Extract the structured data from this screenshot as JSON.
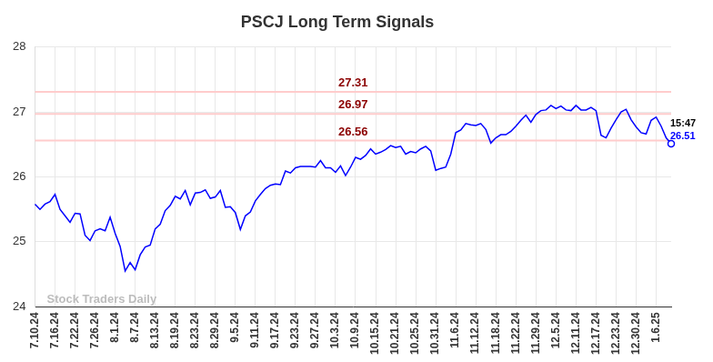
{
  "chart_data": {
    "type": "line",
    "title": "PSCJ Long Term Signals",
    "categories": [
      "7.10.24",
      null,
      null,
      null,
      "7.16.24",
      null,
      null,
      null,
      "7.22.24",
      null,
      null,
      null,
      "7.26.24",
      null,
      null,
      null,
      "8.1.24",
      null,
      null,
      null,
      "8.7.24",
      null,
      null,
      null,
      "8.13.24",
      null,
      null,
      null,
      "8.19.24",
      null,
      null,
      null,
      "8.23.24",
      null,
      null,
      null,
      "8.29.24",
      null,
      null,
      null,
      "9.5.24",
      null,
      null,
      null,
      "9.11.24",
      null,
      null,
      null,
      "9.17.24",
      null,
      null,
      null,
      "9.23.24",
      null,
      null,
      null,
      "9.27.24",
      null,
      null,
      null,
      "10.3.24",
      null,
      null,
      null,
      "10.9.24",
      null,
      null,
      null,
      "10.15.24",
      null,
      null,
      null,
      "10.21.24",
      null,
      null,
      null,
      "10.25.24",
      null,
      null,
      null,
      "10.31.24",
      null,
      null,
      null,
      "11.6.24",
      null,
      null,
      null,
      "11.12.24",
      null,
      null,
      null,
      "11.18.24",
      null,
      null,
      null,
      "11.22.24",
      null,
      null,
      null,
      "11.29.24",
      null,
      null,
      null,
      "12.5.24",
      null,
      null,
      null,
      "12.11.24",
      null,
      null,
      null,
      "12.17.24",
      null,
      null,
      null,
      "12.23.24",
      null,
      null,
      null,
      "12.30.24",
      null,
      null,
      null,
      "1.6.25",
      null,
      null,
      null
    ],
    "values": [
      25.58,
      25.5,
      25.58,
      25.62,
      25.73,
      25.5,
      25.4,
      25.3,
      25.44,
      25.43,
      25.1,
      25.02,
      25.17,
      25.2,
      25.17,
      25.38,
      25.13,
      24.93,
      24.55,
      24.68,
      24.57,
      24.8,
      24.92,
      24.95,
      25.2,
      25.27,
      25.48,
      25.56,
      25.7,
      25.66,
      25.79,
      25.57,
      25.75,
      25.76,
      25.8,
      25.67,
      25.69,
      25.79,
      25.53,
      25.54,
      25.45,
      25.19,
      25.4,
      25.46,
      25.63,
      25.73,
      25.82,
      25.87,
      25.89,
      25.88,
      26.09,
      26.06,
      26.14,
      26.16,
      26.16,
      26.16,
      26.15,
      26.25,
      26.14,
      26.14,
      26.07,
      26.17,
      26.02,
      26.15,
      26.3,
      26.27,
      26.33,
      26.43,
      26.35,
      26.38,
      26.42,
      26.48,
      26.45,
      26.47,
      26.35,
      26.39,
      26.37,
      26.43,
      26.47,
      26.4,
      26.1,
      26.13,
      26.15,
      26.35,
      26.68,
      26.72,
      26.82,
      26.8,
      26.79,
      26.82,
      26.73,
      26.52,
      26.6,
      26.65,
      26.65,
      26.7,
      26.78,
      26.87,
      26.95,
      26.84,
      26.96,
      27.02,
      27.03,
      27.1,
      27.05,
      27.09,
      27.03,
      27.02,
      27.1,
      27.03,
      27.03,
      27.07,
      27.02,
      26.64,
      26.6,
      26.75,
      26.88,
      27.0,
      27.04,
      26.88,
      26.77,
      26.68,
      26.66,
      26.87,
      26.92,
      26.78,
      26.6,
      26.51
    ],
    "color": "#0000ff",
    "ylim": [
      24,
      28
    ],
    "yticks": [
      24,
      25,
      26,
      27,
      28
    ],
    "grid": true,
    "horizontal_lines": [
      27.31,
      26.97,
      26.56
    ],
    "last_point": {
      "time": "15:47",
      "value": 26.51
    },
    "watermark": "Stock Traders Daily"
  }
}
